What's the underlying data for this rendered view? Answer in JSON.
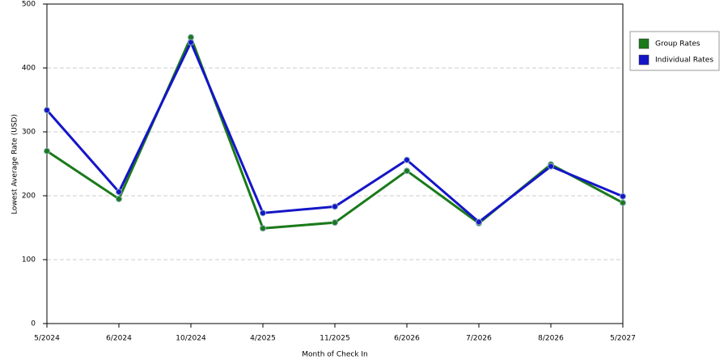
{
  "chart_data": {
    "type": "line",
    "x_label": "Month of Check In",
    "y_label": "Lowest Average Rate (USD)",
    "categories": [
      "5/2024",
      "6/2024",
      "10/2024",
      "4/2025",
      "11/2025",
      "6/2026",
      "7/2026",
      "8/2026",
      "5/2027"
    ],
    "series": [
      {
        "name": "Group Rates",
        "color": "#1a7a1a",
        "values": [
          270,
          195,
          448,
          149,
          158,
          239,
          157,
          249,
          189
        ]
      },
      {
        "name": "Individual Rates",
        "color": "#1515c8",
        "values": [
          334,
          206,
          440,
          173,
          183,
          256,
          159,
          246,
          199
        ]
      }
    ],
    "ylim": [
      0,
      500
    ],
    "yticks": [
      0,
      100,
      200,
      300,
      400,
      500
    ],
    "grid": true
  }
}
